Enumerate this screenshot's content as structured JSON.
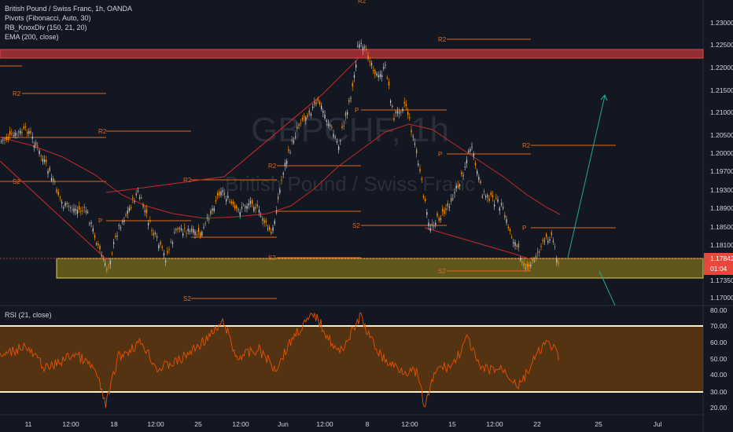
{
  "chart": {
    "symbol_title": "British Pound / Swiss Franc, 1h, OANDA",
    "watermark_symbol": "GBPCHF, 1h",
    "watermark_desc": "British Pound / Swiss Franc",
    "indicators": [
      "Pivots (Fibonacci, Auto, 30)",
      "RB_KnoxDiv (150, 21, 20)",
      "EMA (200, close)"
    ],
    "rsi_label": "RSI (21, close)",
    "current_price": "1.17842",
    "countdown": "01:04",
    "top_marker": "R2"
  },
  "price_axis": [
    "1.23000",
    "1.22500",
    "1.22000",
    "1.21500",
    "1.21000",
    "1.20500",
    "1.20000",
    "1.19700",
    "1.19300",
    "1.18900",
    "1.18500",
    "1.18100",
    "1.17350",
    "1.17000"
  ],
  "rsi_axis": [
    "80.00",
    "70.00",
    "60.00",
    "50.00",
    "40.00",
    "30.00",
    "20.00"
  ],
  "time_axis": [
    "11",
    "12:00",
    "18",
    "12:00",
    "25",
    "12:00",
    "Jun",
    "12:00",
    "8",
    "12:00",
    "15",
    "12:00",
    "22",
    "25",
    "Jul"
  ],
  "pivot_labels": [
    "R2",
    "R2",
    "R2",
    "R2",
    "R2",
    "P",
    "P",
    "P",
    "P",
    "S2",
    "S2",
    "S2",
    "S2",
    "S2"
  ],
  "colors": {
    "background": "#131722",
    "candle_up": "#c9ced8",
    "candle_down": "#ff9800",
    "pivot_line": "#e06a1a",
    "resistance_zone": "#c0373a",
    "support_zone": "#9e8d18",
    "ema": "#c62828",
    "projection": "#26a69a",
    "rsi_fill": "#8a4a08",
    "rsi_line": "#e65100"
  }
}
